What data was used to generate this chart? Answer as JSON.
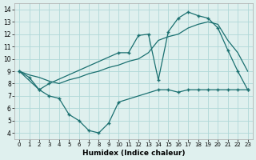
{
  "line_upper_x": [
    0,
    1,
    2,
    3,
    10,
    11,
    12,
    13,
    14,
    15,
    16,
    17,
    18,
    19,
    20,
    21,
    22,
    23
  ],
  "line_upper_y": [
    9.0,
    8.5,
    7.5,
    8.0,
    10.5,
    10.5,
    11.9,
    12.0,
    8.3,
    12.2,
    13.3,
    13.8,
    13.5,
    13.3,
    12.5,
    10.7,
    9.0,
    7.5
  ],
  "line_lower_x": [
    0,
    2,
    3,
    4,
    5,
    6,
    7,
    8,
    9,
    10,
    14,
    15,
    16,
    17,
    18,
    19,
    20,
    21,
    22,
    23
  ],
  "line_lower_y": [
    9.0,
    7.5,
    7.0,
    6.8,
    5.5,
    5.0,
    4.2,
    4.0,
    4.8,
    6.5,
    7.5,
    7.5,
    7.3,
    7.5,
    7.5,
    7.5,
    7.5,
    7.5,
    7.5,
    7.5
  ],
  "line_mid_x": [
    0,
    1,
    2,
    3,
    4,
    5,
    6,
    7,
    8,
    9,
    10,
    11,
    12,
    13,
    14,
    15,
    16,
    17,
    18,
    19,
    20,
    21,
    22,
    23
  ],
  "line_mid_y": [
    9.0,
    8.7,
    8.5,
    8.2,
    8.0,
    8.3,
    8.5,
    8.8,
    9.0,
    9.3,
    9.5,
    9.8,
    10.0,
    10.5,
    11.5,
    11.8,
    12.0,
    12.5,
    12.8,
    13.0,
    12.8,
    11.5,
    10.5,
    9.0
  ],
  "bg_color": "#dff0ee",
  "line_color": "#1a7070",
  "grid_color": "#b0d8d8",
  "xlabel": "Humidex (Indice chaleur)",
  "xlim": [
    -0.5,
    23.5
  ],
  "ylim": [
    3.5,
    14.5
  ],
  "xticks": [
    0,
    1,
    2,
    3,
    4,
    5,
    6,
    7,
    8,
    9,
    10,
    11,
    12,
    13,
    14,
    15,
    16,
    17,
    18,
    19,
    20,
    21,
    22,
    23
  ],
  "yticks": [
    4,
    5,
    6,
    7,
    8,
    9,
    10,
    11,
    12,
    13,
    14
  ]
}
